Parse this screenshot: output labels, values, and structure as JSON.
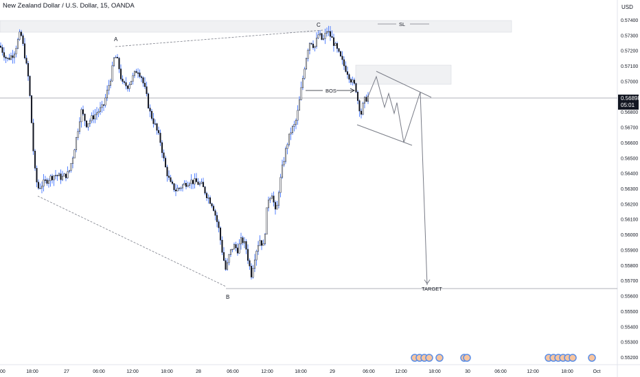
{
  "title": "New Zealand Dollar / U.S. Dollar, 15, OANDA",
  "currency": "USD",
  "current_price": "0.56898",
  "countdown": "05:01",
  "chart_data": {
    "type": "candlestick",
    "y_axis": {
      "min": 0.552,
      "max": 0.575,
      "ticks": [
        "0.57400",
        "0.57300",
        "0.57200",
        "0.57100",
        "0.57000",
        "0.56900",
        "0.56800",
        "0.56700",
        "0.56600",
        "0.56500",
        "0.56400",
        "0.56300",
        "0.56200",
        "0.56100",
        "0.56000",
        "0.55900",
        "0.55800",
        "0.55700",
        "0.55600",
        "0.55500",
        "0.55400",
        "0.55300",
        "0.55200"
      ]
    },
    "x_axis": {
      "ticks": [
        "00",
        "18:00",
        "27",
        "06:00",
        "12:00",
        "18:00",
        "28",
        "06:00",
        "12:00",
        "18:00",
        "29",
        "06:00",
        "12:00",
        "18:00",
        "30",
        "06:00",
        "12:00",
        "18:00",
        "Oct"
      ]
    },
    "annotations": [
      "A",
      "B",
      "C",
      "BOS",
      "SL",
      "TARGET"
    ],
    "key_levels": [
      {
        "label": "A",
        "price": 0.5722
      },
      {
        "label": "B",
        "price": 0.5566
      },
      {
        "label": "C",
        "price": 0.5734
      },
      {
        "label": "SL",
        "price": 0.5734
      },
      {
        "label": "TARGET",
        "price": 0.5567
      },
      {
        "label": "BOS",
        "price": 0.5696
      }
    ],
    "price_path": [
      {
        "x": 0,
        "y": 0.5723
      },
      {
        "x": 10,
        "y": 0.5714
      },
      {
        "x": 20,
        "y": 0.5718
      },
      {
        "x": 30,
        "y": 0.5732
      },
      {
        "x": 36,
        "y": 0.5717
      },
      {
        "x": 42,
        "y": 0.57
      },
      {
        "x": 46,
        "y": 0.5673
      },
      {
        "x": 50,
        "y": 0.5644
      },
      {
        "x": 55,
        "y": 0.563
      },
      {
        "x": 62,
        "y": 0.5633
      },
      {
        "x": 70,
        "y": 0.5636
      },
      {
        "x": 80,
        "y": 0.5639
      },
      {
        "x": 90,
        "y": 0.5637
      },
      {
        "x": 100,
        "y": 0.564
      },
      {
        "x": 106,
        "y": 0.5651
      },
      {
        "x": 112,
        "y": 0.5665
      },
      {
        "x": 118,
        "y": 0.5681
      },
      {
        "x": 126,
        "y": 0.5672
      },
      {
        "x": 134,
        "y": 0.5676
      },
      {
        "x": 142,
        "y": 0.568
      },
      {
        "x": 150,
        "y": 0.5683
      },
      {
        "x": 156,
        "y": 0.5693
      },
      {
        "x": 162,
        "y": 0.5704
      },
      {
        "x": 167,
        "y": 0.5717
      },
      {
        "x": 172,
        "y": 0.5712
      },
      {
        "x": 178,
        "y": 0.5698
      },
      {
        "x": 186,
        "y": 0.5697
      },
      {
        "x": 194,
        "y": 0.5703
      },
      {
        "x": 200,
        "y": 0.5708
      },
      {
        "x": 206,
        "y": 0.5703
      },
      {
        "x": 212,
        "y": 0.5693
      },
      {
        "x": 218,
        "y": 0.568
      },
      {
        "x": 226,
        "y": 0.5671
      },
      {
        "x": 234,
        "y": 0.566
      },
      {
        "x": 240,
        "y": 0.5645
      },
      {
        "x": 248,
        "y": 0.5633
      },
      {
        "x": 256,
        "y": 0.5629
      },
      {
        "x": 266,
        "y": 0.5632
      },
      {
        "x": 276,
        "y": 0.5635
      },
      {
        "x": 286,
        "y": 0.5634
      },
      {
        "x": 294,
        "y": 0.5632
      },
      {
        "x": 302,
        "y": 0.5625
      },
      {
        "x": 310,
        "y": 0.5619
      },
      {
        "x": 318,
        "y": 0.5605
      },
      {
        "x": 324,
        "y": 0.5588
      },
      {
        "x": 329,
        "y": 0.5576
      },
      {
        "x": 334,
        "y": 0.5587
      },
      {
        "x": 340,
        "y": 0.5593
      },
      {
        "x": 346,
        "y": 0.559
      },
      {
        "x": 352,
        "y": 0.5597
      },
      {
        "x": 358,
        "y": 0.5592
      },
      {
        "x": 362,
        "y": 0.5582
      },
      {
        "x": 366,
        "y": 0.5574
      },
      {
        "x": 372,
        "y": 0.5588
      },
      {
        "x": 378,
        "y": 0.5597
      },
      {
        "x": 384,
        "y": 0.5592
      },
      {
        "x": 390,
        "y": 0.5623
      },
      {
        "x": 396,
        "y": 0.5627
      },
      {
        "x": 402,
        "y": 0.5612
      },
      {
        "x": 406,
        "y": 0.5629
      },
      {
        "x": 412,
        "y": 0.5646
      },
      {
        "x": 418,
        "y": 0.5659
      },
      {
        "x": 424,
        "y": 0.5668
      },
      {
        "x": 430,
        "y": 0.5672
      },
      {
        "x": 434,
        "y": 0.5681
      },
      {
        "x": 440,
        "y": 0.5699
      },
      {
        "x": 444,
        "y": 0.5711
      },
      {
        "x": 448,
        "y": 0.5721
      },
      {
        "x": 452,
        "y": 0.5727
      },
      {
        "x": 458,
        "y": 0.5722
      },
      {
        "x": 464,
        "y": 0.5731
      },
      {
        "x": 470,
        "y": 0.5726
      },
      {
        "x": 476,
        "y": 0.5733
      },
      {
        "x": 482,
        "y": 0.5729
      },
      {
        "x": 488,
        "y": 0.5723
      },
      {
        "x": 494,
        "y": 0.5717
      },
      {
        "x": 500,
        "y": 0.5711
      },
      {
        "x": 506,
        "y": 0.5706
      },
      {
        "x": 512,
        "y": 0.57
      },
      {
        "x": 518,
        "y": 0.5696
      },
      {
        "x": 522,
        "y": 0.5685
      },
      {
        "x": 526,
        "y": 0.5679
      },
      {
        "x": 530,
        "y": 0.5687
      },
      {
        "x": 536,
        "y": 0.569
      }
    ],
    "projection_path": [
      {
        "x": 536,
        "y": 0.569
      },
      {
        "x": 548,
        "y": 0.5703
      },
      {
        "x": 560,
        "y": 0.5683
      },
      {
        "x": 566,
        "y": 0.5692
      },
      {
        "x": 574,
        "y": 0.5679
      },
      {
        "x": 578,
        "y": 0.5686
      },
      {
        "x": 588,
        "y": 0.566
      },
      {
        "x": 612,
        "y": 0.5693
      },
      {
        "x": 622,
        "y": 0.5567
      }
    ],
    "colors": {
      "candle_body": "#131722",
      "wick": "#2962ff",
      "guide": "#787b86"
    }
  }
}
